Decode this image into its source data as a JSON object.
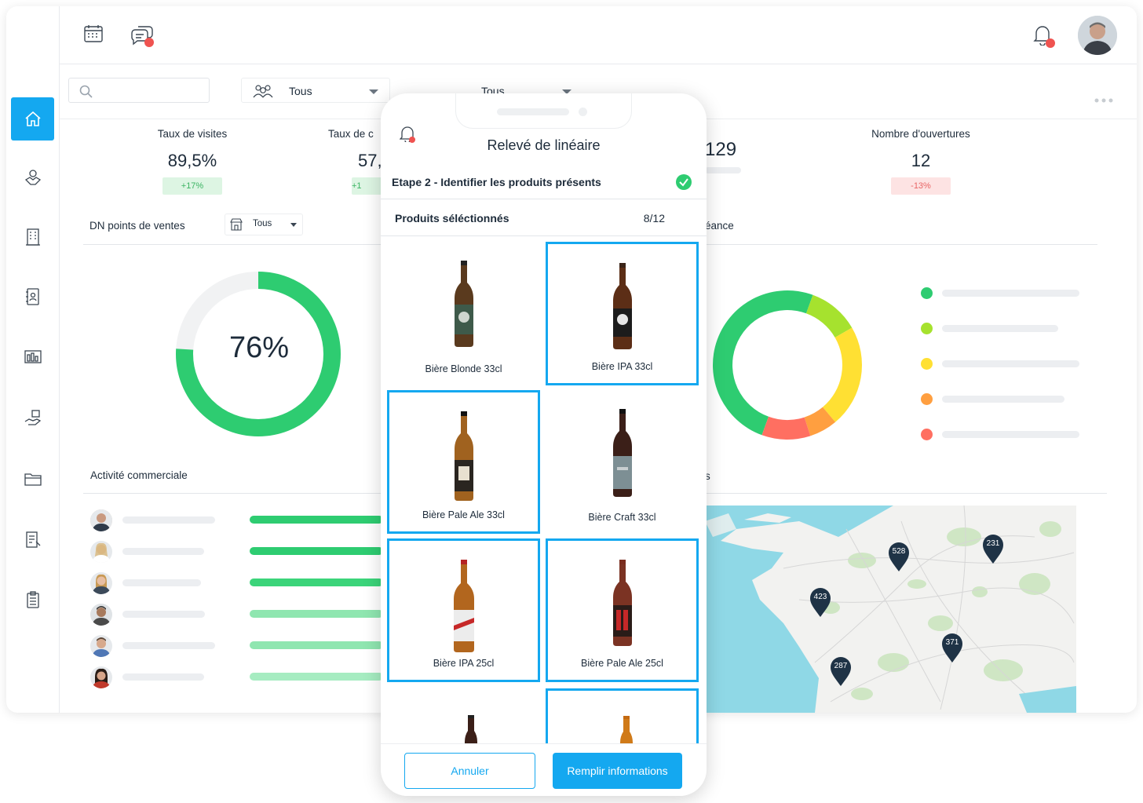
{
  "filters": {
    "group_value": "Tous",
    "second_value": "Tous",
    "dn_value": "Tous"
  },
  "kpis": [
    {
      "label": "Taux de visites",
      "value": "89,5%",
      "delta": "+17%"
    },
    {
      "label": "Taux de c",
      "value": "57,",
      "delta": "+1"
    },
    {
      "label": "",
      "value": "129",
      "delta": ""
    },
    {
      "label": "Nombre d'ouvertures",
      "value": "12",
      "delta": "-13%"
    }
  ],
  "dn": {
    "title": "DN points de ventes",
    "percent_label": "76%",
    "percent": 76
  },
  "activity": {
    "title": "Activité commerciale",
    "rows": 6
  },
  "echeance": {
    "title_fragment": "éance"
  },
  "map_section": {
    "title_fragment": "s"
  },
  "donut_colors": [
    "#2ecc71",
    "#a6e22e",
    "#ffe033",
    "#ff9f40",
    "#ff6f61"
  ],
  "map_pins": [
    "528",
    "231",
    "423",
    "371",
    "287"
  ],
  "phone": {
    "title": "Relevé de linéaire",
    "step": "Etape 2 - Identifier les produits présents",
    "products_header": "Produits séléctionnés",
    "products_count": "8/12",
    "products": [
      {
        "name": "Bière Blonde 33cl",
        "selected": false
      },
      {
        "name": "Bière IPA 33cl",
        "selected": true
      },
      {
        "name": "Bière Pale Ale 33cl",
        "selected": true
      },
      {
        "name": "Bière Craft 33cl",
        "selected": false
      },
      {
        "name": "Bière IPA 25cl",
        "selected": true
      },
      {
        "name": "Bière Pale Ale 25cl",
        "selected": true
      }
    ],
    "cancel_label": "Annuler",
    "fill_label": "Remplir informations"
  },
  "colors": {
    "accent": "#14a8f0",
    "green": "#2ecc71",
    "red": "#ef5350"
  }
}
